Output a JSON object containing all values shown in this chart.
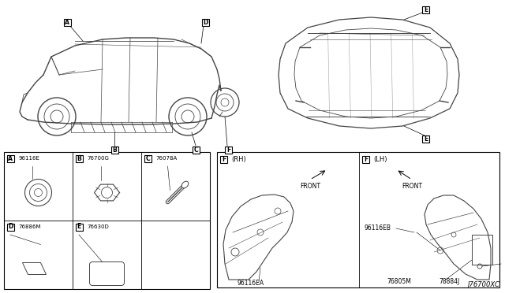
{
  "bg_color": "#ffffff",
  "text_color": "#000000",
  "diagram_color": "#444444",
  "figure_code": "J76700XC",
  "parts": {
    "A": "96116E",
    "B": "76700G",
    "C": "76078A",
    "D": "76886M",
    "E": "76630D",
    "F_RH": "96116EA",
    "F_LH_1": "96116EB",
    "F_LH_2": "76805M",
    "F_LH_3": "78884J"
  },
  "font_size_label": 6,
  "font_size_part": 5.5,
  "font_size_fig_code": 6
}
